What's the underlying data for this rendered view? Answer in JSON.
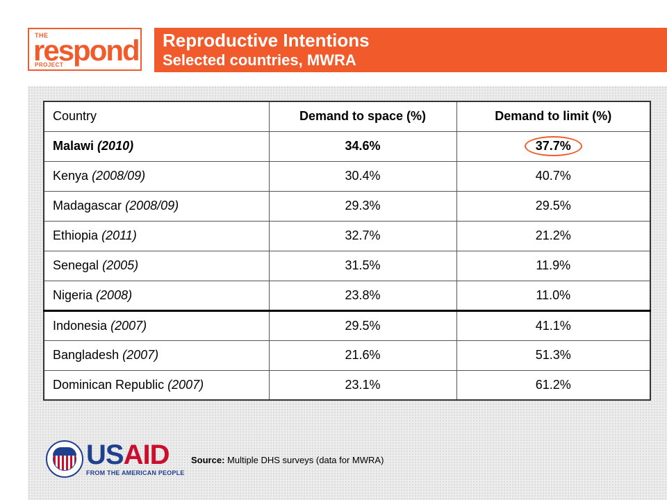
{
  "header": {
    "logo_small_top": "THE",
    "logo_word": "respond",
    "logo_small_bottom": "PROJECT",
    "title": "Reproductive Intentions",
    "subtitle": "Selected countries, MWRA"
  },
  "table": {
    "headers": [
      "Country",
      "Demand to space (%)",
      "Demand to limit (%)"
    ],
    "rows": [
      {
        "country": "Malawi",
        "year": "(2010)",
        "space": "34.6%",
        "limit": "37.7%"
      },
      {
        "country": "Kenya",
        "year": "(2008/09)",
        "space": "30.4%",
        "limit": "40.7%"
      },
      {
        "country": "Madagascar",
        "year": "(2008/09)",
        "space": "29.3%",
        "limit": "29.5%"
      },
      {
        "country": "Ethiopia",
        "year": "(2011)",
        "space": "32.7%",
        "limit": "21.2%"
      },
      {
        "country": "Senegal",
        "year": "(2005)",
        "space": "31.5%",
        "limit": "11.9%"
      },
      {
        "country": "Nigeria",
        "year": "(2008)",
        "space": "23.8%",
        "limit": "11.0%"
      },
      {
        "country": "Indonesia",
        "year": "(2007)",
        "space": "29.5%",
        "limit": "41.1%"
      },
      {
        "country": "Bangladesh",
        "year": "(2007)",
        "space": "21.6%",
        "limit": "51.3%"
      },
      {
        "country": "Dominican Republic",
        "year": "(2007)",
        "space": "23.1%",
        "limit": "61.2%"
      }
    ]
  },
  "footer": {
    "usaid_name_a": "US",
    "usaid_name_b": "AID",
    "usaid_tagline": "FROM THE AMERICAN PEOPLE",
    "source_label": "Source:",
    "source_text": "Multiple DHS surveys (data for MWRA)"
  },
  "colors": {
    "accent": "#f15a2b",
    "usaid_blue": "#1f3f8f",
    "usaid_red": "#c8102e"
  }
}
